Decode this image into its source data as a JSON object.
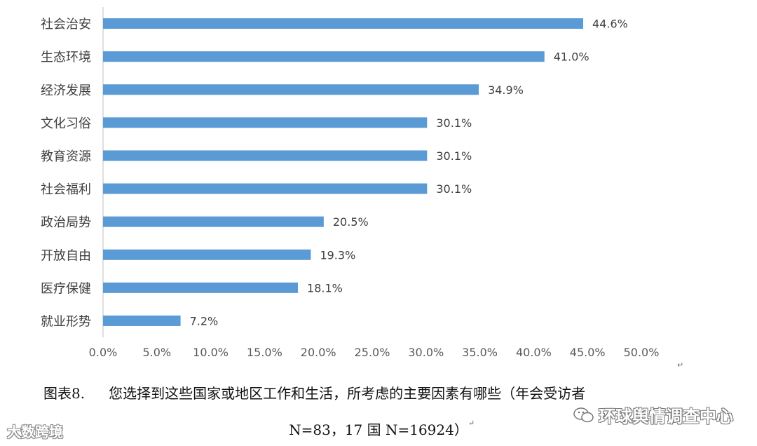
{
  "chart_data": {
    "type": "bar",
    "orientation": "horizontal",
    "categories": [
      "社会治安",
      "生态环境",
      "经济发展",
      "文化习俗",
      "教育资源",
      "社会福利",
      "政治局势",
      "开放自由",
      "医疗保健",
      "就业形势"
    ],
    "values": [
      44.6,
      41.0,
      34.9,
      30.1,
      30.1,
      30.1,
      20.5,
      19.3,
      18.1,
      7.2
    ],
    "value_labels": [
      "44.6%",
      "41.0%",
      "34.9%",
      "30.1%",
      "30.1%",
      "30.1%",
      "20.5%",
      "19.3%",
      "18.1%",
      "7.2%"
    ],
    "xlim": [
      0,
      50
    ],
    "x_ticks": [
      "0.0%",
      "5.0%",
      "10.0%",
      "15.0%",
      "20.0%",
      "25.0%",
      "30.0%",
      "35.0%",
      "40.0%",
      "45.0%",
      "50.0%"
    ],
    "bar_color": "#5b9bd5",
    "grid": false,
    "legend": "none"
  },
  "caption": {
    "number": "图表8.",
    "line1": "您选择到这些国家或地区工作和生活，所考虑的主要因素有哪些（年会受访者",
    "line2": "N=83，17 国 N=16924）"
  },
  "watermarks": {
    "left": "大数跨境",
    "right": "环球舆情调查中心"
  },
  "return_mark": "↵"
}
